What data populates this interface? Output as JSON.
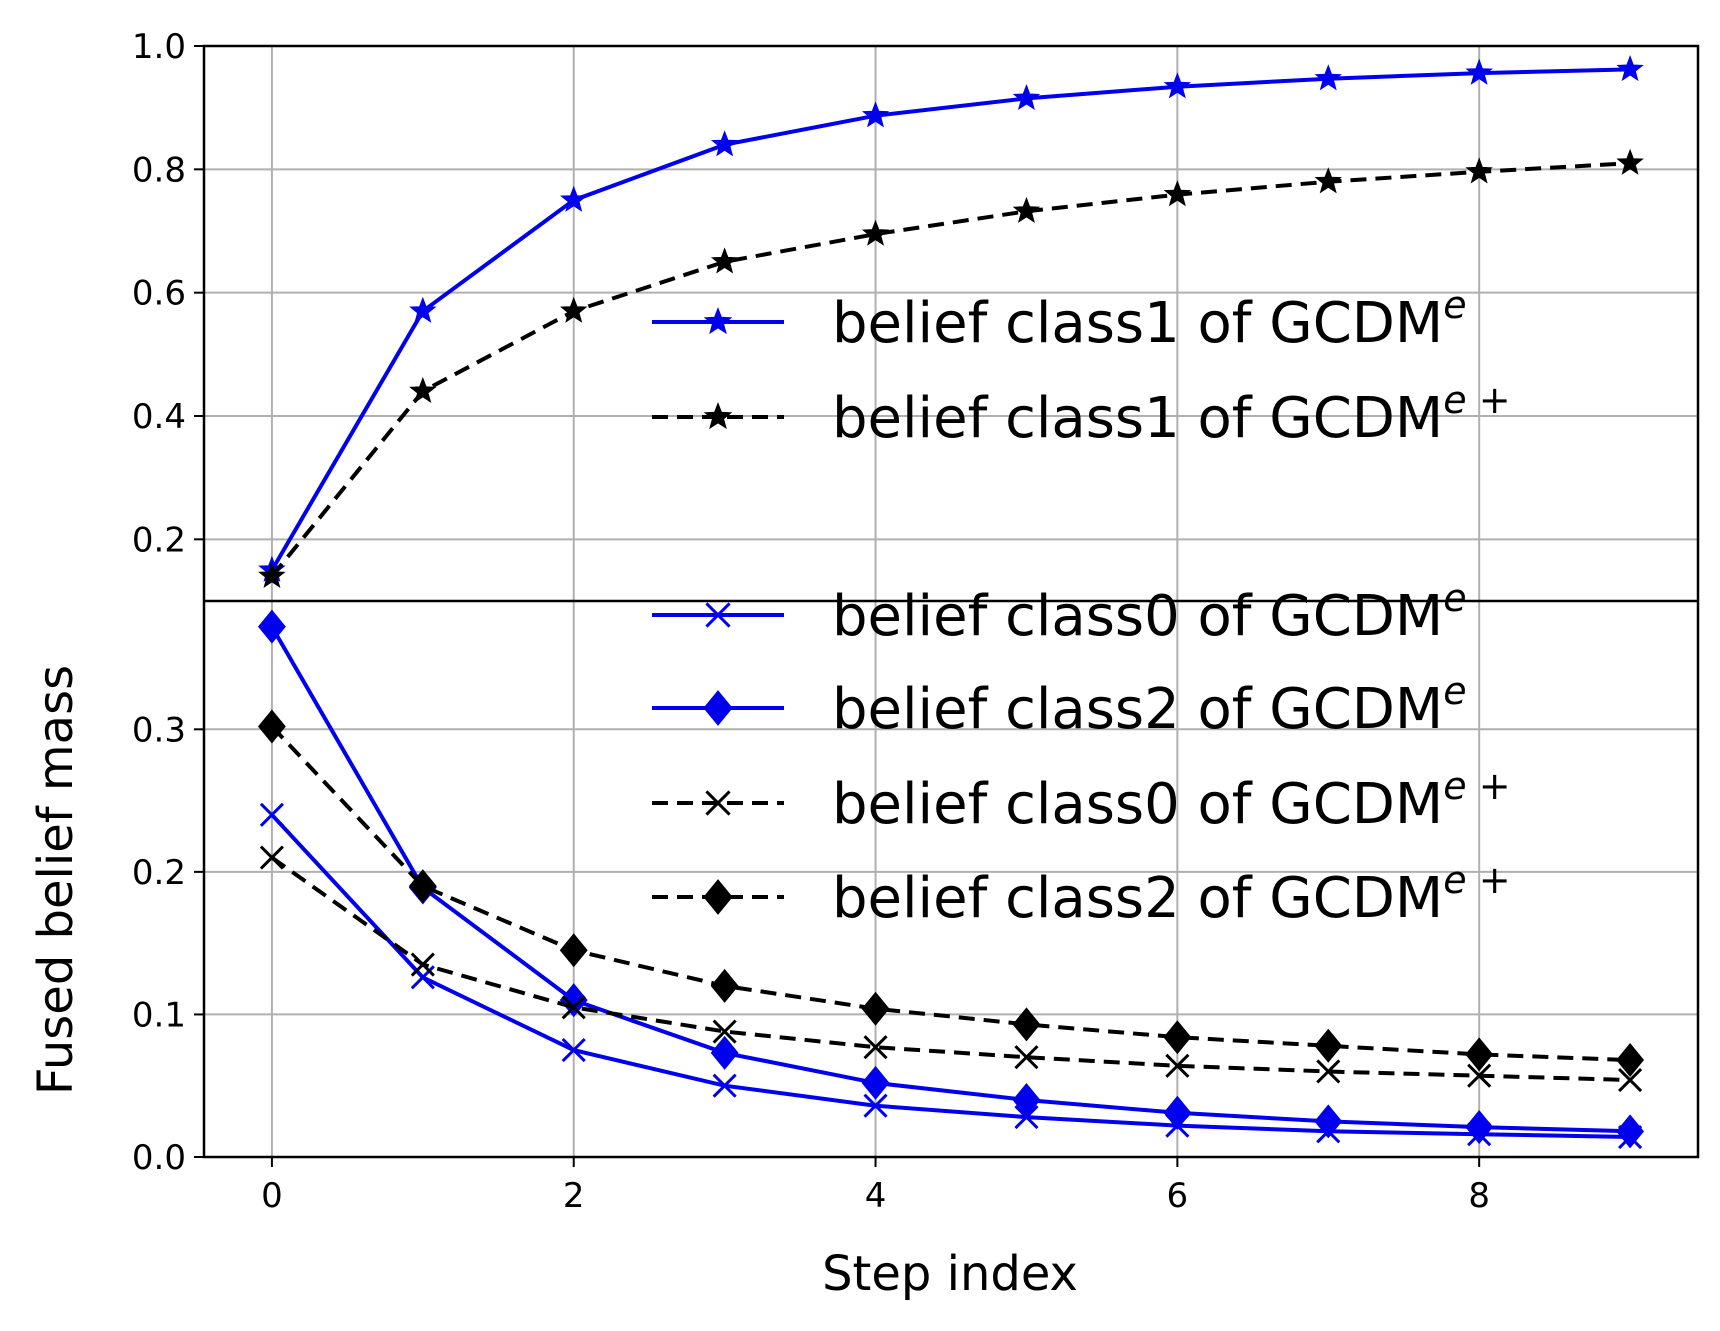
{
  "chart_data": {
    "type": "line",
    "xlabel": "Step index",
    "ylabel": "Fused belief mass",
    "x": [
      0,
      1,
      2,
      3,
      4,
      5,
      6,
      7,
      8,
      9
    ],
    "xlim": [
      -0.45,
      9.45
    ],
    "xticks": [
      "0",
      "2",
      "4",
      "6",
      "8"
    ],
    "grid": true,
    "legend_position": "center-right",
    "panels": [
      {
        "name": "top",
        "ylim": [
          0.1,
          1.0
        ],
        "yticks": [
          "0.2",
          "0.4",
          "0.6",
          "0.8",
          "1.0"
        ],
        "series": [
          {
            "name": "belief class1 of GCDM",
            "superscript": "e",
            "color": "#0000ee",
            "dash": "solid",
            "marker": "star",
            "values": [
              0.15,
              0.57,
              0.75,
              0.84,
              0.887,
              0.915,
              0.934,
              0.947,
              0.956,
              0.962
            ]
          },
          {
            "name": "belief class1 of GCDM",
            "superscript": "e +",
            "color": "#000000",
            "dash": "dashed",
            "marker": "star",
            "values": [
              0.14,
              0.44,
              0.57,
              0.65,
              0.695,
              0.732,
              0.759,
              0.78,
              0.796,
              0.81
            ]
          }
        ]
      },
      {
        "name": "bottom",
        "ylim": [
          0.0,
          0.39
        ],
        "yticks": [
          "0.0",
          "0.1",
          "0.2",
          "0.3"
        ],
        "series": [
          {
            "name": "belief class0 of GCDM",
            "superscript": "e",
            "color": "#0000ee",
            "dash": "solid",
            "marker": "x",
            "values": [
              0.24,
              0.126,
              0.075,
              0.05,
              0.036,
              0.028,
              0.022,
              0.018,
              0.016,
              0.014
            ]
          },
          {
            "name": "belief class2 of GCDM",
            "superscript": "e",
            "color": "#0000ee",
            "dash": "solid",
            "marker": "diamond",
            "values": [
              0.372,
              0.189,
              0.11,
              0.073,
              0.052,
              0.04,
              0.031,
              0.025,
              0.021,
              0.018
            ]
          },
          {
            "name": "belief class0 of GCDM",
            "superscript": "e +",
            "color": "#000000",
            "dash": "dashed",
            "marker": "x",
            "values": [
              0.21,
              0.135,
              0.105,
              0.088,
              0.077,
              0.07,
              0.064,
              0.06,
              0.057,
              0.054
            ]
          },
          {
            "name": "belief class2 of GCDM",
            "superscript": "e +",
            "color": "#000000",
            "dash": "dashed",
            "marker": "diamond",
            "values": [
              0.302,
              0.19,
              0.145,
              0.12,
              0.104,
              0.093,
              0.084,
              0.078,
              0.072,
              0.068
            ]
          }
        ]
      }
    ]
  }
}
